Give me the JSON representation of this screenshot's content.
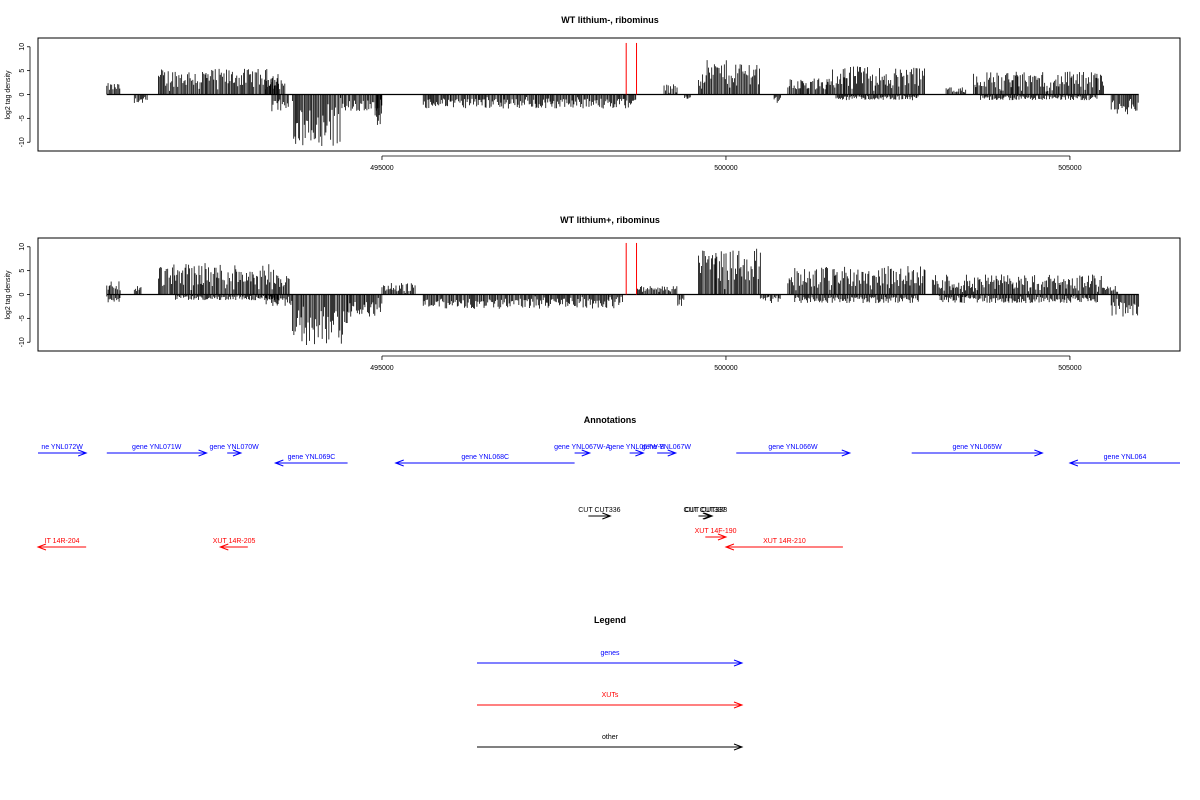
{
  "colors": {
    "gene": "#0000ff",
    "xut": "#ff0000",
    "other": "#000000",
    "marker": "#ff0000",
    "bar": "#000000"
  },
  "chart_data": [
    {
      "type": "bar",
      "title": "WT lithium-, ribominus",
      "xlabel": "",
      "ylabel": "log2 tag density",
      "xlim": [
        490000,
        506600
      ],
      "ylim": [
        -11,
        11
      ],
      "xticks": [
        495000,
        500000,
        505000
      ],
      "yticks": [
        10,
        5,
        0,
        -5,
        -10
      ],
      "profile": [
        {
          "range": [
            491000,
            491200
          ],
          "level": 2,
          "sign": 1
        },
        {
          "range": [
            491400,
            491600
          ],
          "level": 1.5,
          "sign": -1
        },
        {
          "range": [
            491750,
            493500
          ],
          "level": 4.5,
          "sign": 1
        },
        {
          "range": [
            493300,
            493600
          ],
          "level": 3,
          "sign": 1
        },
        {
          "range": [
            493400,
            493650
          ],
          "level": 3,
          "sign": -1
        },
        {
          "range": [
            493700,
            494400
          ],
          "level": 9,
          "sign": -1
        },
        {
          "range": [
            494400,
            495000
          ],
          "level": 3,
          "sign": -1
        },
        {
          "range": [
            494900,
            495000
          ],
          "level": 8,
          "sign": -1
        },
        {
          "range": [
            495600,
            498700
          ],
          "level": 2.5,
          "sign": -1
        },
        {
          "range": [
            499100,
            499300
          ],
          "level": 1.8,
          "sign": 1
        },
        {
          "range": [
            499400,
            499500
          ],
          "level": 1,
          "sign": -1
        },
        {
          "range": [
            499600,
            500500
          ],
          "level": 6,
          "sign": 1
        },
        {
          "range": [
            500700,
            500800
          ],
          "level": 1.5,
          "sign": -1
        },
        {
          "range": [
            500900,
            501500
          ],
          "level": 2.8,
          "sign": 1
        },
        {
          "range": [
            501500,
            502900
          ],
          "level": 5,
          "sign": 1
        },
        {
          "range": [
            501600,
            502800
          ],
          "level": 1,
          "sign": -1
        },
        {
          "range": [
            503200,
            503500
          ],
          "level": 1.5,
          "sign": 1
        },
        {
          "range": [
            503600,
            505500
          ],
          "level": 4,
          "sign": 1
        },
        {
          "range": [
            503700,
            505400
          ],
          "level": 1,
          "sign": -1
        },
        {
          "range": [
            505600,
            506000
          ],
          "level": 3.5,
          "sign": -1
        }
      ],
      "marks": [
        498550,
        498700
      ]
    },
    {
      "type": "bar",
      "title": "WT lithium+, ribominus",
      "xlabel": "",
      "ylabel": "log2 tag density",
      "xlim": [
        490000,
        506600
      ],
      "ylim": [
        -11,
        11
      ],
      "xticks": [
        495000,
        500000,
        505000
      ],
      "yticks": [
        10,
        5,
        0,
        -5,
        -10
      ],
      "profile": [
        {
          "range": [
            491000,
            491200
          ],
          "level": 2.5,
          "sign": 1
        },
        {
          "range": [
            491000,
            491200
          ],
          "level": 1.5,
          "sign": -1
        },
        {
          "range": [
            491400,
            491500
          ],
          "level": 1.5,
          "sign": 1
        },
        {
          "range": [
            491750,
            493500
          ],
          "level": 5.5,
          "sign": 1
        },
        {
          "range": [
            492000,
            493500
          ],
          "level": 1,
          "sign": -1
        },
        {
          "range": [
            493500,
            493650
          ],
          "level": 3.5,
          "sign": 1
        },
        {
          "range": [
            493300,
            493700
          ],
          "level": 2,
          "sign": -1
        },
        {
          "range": [
            493700,
            494500
          ],
          "level": 9,
          "sign": -1
        },
        {
          "range": [
            494500,
            495000
          ],
          "level": 4,
          "sign": -1
        },
        {
          "range": [
            495000,
            495500
          ],
          "level": 2,
          "sign": 1
        },
        {
          "range": [
            495600,
            498500
          ],
          "level": 2.5,
          "sign": -1
        },
        {
          "range": [
            498700,
            499300
          ],
          "level": 1.5,
          "sign": 1
        },
        {
          "range": [
            499300,
            499400
          ],
          "level": 2,
          "sign": -1
        },
        {
          "range": [
            499600,
            500500
          ],
          "level": 8,
          "sign": 1
        },
        {
          "range": [
            500500,
            500800
          ],
          "level": 1.5,
          "sign": -1
        },
        {
          "range": [
            500900,
            502900
          ],
          "level": 5,
          "sign": 1
        },
        {
          "range": [
            501000,
            502800
          ],
          "level": 1.5,
          "sign": -1
        },
        {
          "range": [
            503000,
            505500
          ],
          "level": 3.5,
          "sign": 1
        },
        {
          "range": [
            503100,
            505400
          ],
          "level": 1.5,
          "sign": -1
        },
        {
          "range": [
            505500,
            505700
          ],
          "level": 1.5,
          "sign": 1
        },
        {
          "range": [
            505600,
            506000
          ],
          "level": 4,
          "sign": -1
        }
      ],
      "marks": [
        498550,
        498700
      ]
    }
  ],
  "annotations": {
    "title": "Annotations",
    "features": [
      {
        "label": "ne YNL072W",
        "kind": "gene",
        "start": 490000,
        "end": 490700,
        "strand": "+",
        "row": 0
      },
      {
        "label": "gene YNL071W",
        "kind": "gene",
        "start": 491000,
        "end": 492450,
        "strand": "+",
        "row": 0
      },
      {
        "label": "gene YNL070W",
        "kind": "gene",
        "start": 492750,
        "end": 492950,
        "strand": "+",
        "row": 0
      },
      {
        "label": "gene YNL069C",
        "kind": "gene",
        "start": 493450,
        "end": 494500,
        "strand": "-",
        "row": 1
      },
      {
        "label": "gene YNL068C",
        "kind": "gene",
        "start": 495200,
        "end": 497800,
        "strand": "-",
        "row": 1
      },
      {
        "label": "gene YNL067W-A",
        "kind": "gene",
        "start": 497800,
        "end": 498020,
        "strand": "+",
        "row": 0
      },
      {
        "label": "gene YNL067W-B",
        "kind": "gene",
        "start": 498600,
        "end": 498800,
        "strand": "+",
        "row": 0
      },
      {
        "label": "gene YNL067W",
        "kind": "gene",
        "start": 499000,
        "end": 499270,
        "strand": "+",
        "row": 0
      },
      {
        "label": "gene YNL066W",
        "kind": "gene",
        "start": 500150,
        "end": 501800,
        "strand": "+",
        "row": 0
      },
      {
        "label": "gene YNL065W",
        "kind": "gene",
        "start": 502700,
        "end": 504600,
        "strand": "+",
        "row": 0
      },
      {
        "label": "gene YNL064",
        "kind": "gene",
        "start": 505000,
        "end": 506600,
        "strand": "-",
        "row": 1
      },
      {
        "label": "CUT CUT336",
        "kind": "other",
        "start": 498000,
        "end": 498320,
        "strand": "+",
        "row": 2
      },
      {
        "label": "CUT CUT337",
        "kind": "other",
        "start": 499600,
        "end": 499780,
        "strand": "+",
        "row": 2
      },
      {
        "label": "CUT CUT338",
        "kind": "other",
        "start": 499620,
        "end": 499800,
        "strand": "+",
        "row": 2
      },
      {
        "label": "XUT 14F-190",
        "kind": "xut",
        "start": 499700,
        "end": 500000,
        "strand": "+",
        "row": 3
      },
      {
        "label": "IT 14R-204",
        "kind": "xut",
        "start": 490000,
        "end": 490700,
        "strand": "-",
        "row": 4
      },
      {
        "label": "XUT 14R-205",
        "kind": "xut",
        "start": 492650,
        "end": 493050,
        "strand": "-",
        "row": 4
      },
      {
        "label": "XUT 14R-210",
        "kind": "xut",
        "start": 500000,
        "end": 501700,
        "strand": "-",
        "row": 4
      }
    ]
  },
  "legend": {
    "title": "Legend",
    "items": [
      {
        "label": "genes",
        "kind": "gene"
      },
      {
        "label": "XUTs",
        "kind": "xut"
      },
      {
        "label": "other",
        "kind": "other"
      }
    ]
  }
}
